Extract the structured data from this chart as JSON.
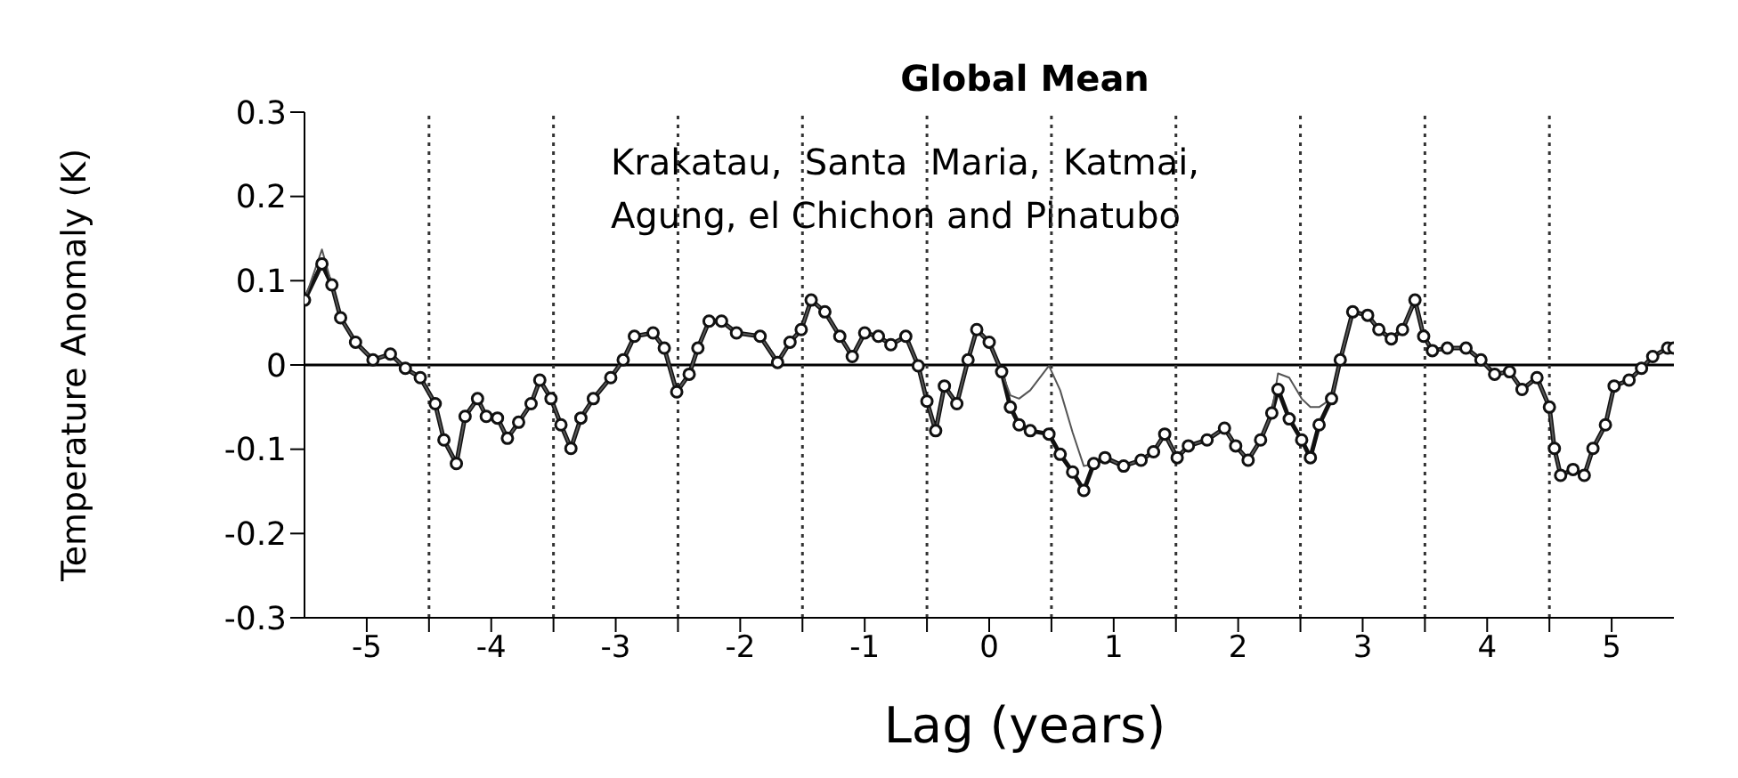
{
  "chart_data": {
    "type": "line",
    "title": "Global Mean",
    "xlabel": "Lag (years)",
    "ylabel": "Temperature Anomaly (K)",
    "annotations": [
      "Krakatau,  Santa  Maria,  Katmai,\nAgung, el Chichon and Pinatubo"
    ],
    "x": [
      -5.5,
      -5.36,
      -5.28,
      -5.21,
      -5.09,
      -4.95,
      -4.81,
      -4.69,
      -4.57,
      -4.45,
      -4.38,
      -4.28,
      -4.21,
      -4.11,
      -4.04,
      -3.95,
      -3.87,
      -3.78,
      -3.68,
      -3.61,
      -3.52,
      -3.44,
      -3.36,
      -3.28,
      -3.18,
      -3.04,
      -2.94,
      -2.85,
      -2.7,
      -2.61,
      -2.51,
      -2.41,
      -2.34,
      -2.25,
      -2.15,
      -2.03,
      -1.84,
      -1.7,
      -1.6,
      -1.51,
      -1.43,
      -1.32,
      -1.2,
      -1.1,
      -1.0,
      -0.89,
      -0.79,
      -0.67,
      -0.57,
      -0.5,
      -0.43,
      -0.36,
      -0.26,
      -0.17,
      -0.1,
      0.0,
      0.1,
      0.17,
      0.24,
      0.33,
      0.48,
      0.57,
      0.67,
      0.76,
      0.84,
      0.93,
      1.08,
      1.22,
      1.32,
      1.41,
      1.51,
      1.6,
      1.75,
      1.89,
      1.98,
      2.08,
      2.18,
      2.27,
      2.32,
      2.41,
      2.51,
      2.58,
      2.65,
      2.75,
      2.82,
      2.92,
      3.04,
      3.13,
      3.23,
      3.32,
      3.42,
      3.49,
      3.56,
      3.68,
      3.83,
      3.95,
      4.06,
      4.18,
      4.28,
      4.4,
      4.5,
      4.54,
      4.59,
      4.69,
      4.78,
      4.85,
      4.95,
      5.02,
      5.14,
      5.24,
      5.33,
      5.45,
      5.5
    ],
    "series": [
      {
        "color": "#111111",
        "marker": "circle",
        "line_style": "solid",
        "values": [
          0.077,
          0.12,
          0.095,
          0.056,
          0.027,
          0.006,
          0.013,
          -0.004,
          -0.015,
          -0.046,
          -0.089,
          -0.117,
          -0.061,
          -0.04,
          -0.061,
          -0.063,
          -0.087,
          -0.068,
          -0.046,
          -0.018,
          -0.04,
          -0.071,
          -0.099,
          -0.063,
          -0.04,
          -0.015,
          0.006,
          0.034,
          0.038,
          0.02,
          -0.032,
          -0.011,
          0.02,
          0.052,
          0.052,
          0.038,
          0.034,
          0.003,
          0.027,
          0.042,
          0.077,
          0.063,
          0.034,
          0.01,
          0.038,
          0.034,
          0.024,
          0.034,
          -0.001,
          -0.043,
          -0.078,
          -0.025,
          -0.046,
          0.006,
          0.042,
          0.027,
          -0.008,
          -0.05,
          -0.071,
          -0.078,
          -0.082,
          -0.106,
          -0.127,
          -0.149,
          -0.117,
          -0.11,
          -0.12,
          -0.113,
          -0.103,
          -0.082,
          -0.11,
          -0.096,
          -0.089,
          -0.075,
          -0.096,
          -0.113,
          -0.089,
          -0.057,
          -0.029,
          -0.064,
          -0.089,
          -0.11,
          -0.071,
          -0.04,
          0.006,
          0.063,
          0.059,
          0.042,
          0.031,
          0.042,
          0.077,
          0.034,
          0.017,
          0.02,
          0.02,
          0.006,
          -0.011,
          -0.008,
          -0.029,
          -0.015,
          -0.05,
          -0.099,
          -0.131,
          -0.124,
          -0.131,
          -0.099,
          -0.071,
          -0.025,
          -0.018,
          -0.004,
          0.01,
          0.02,
          0.02
        ]
      },
      {
        "color": "#555555",
        "marker": "none",
        "line_style": "solid",
        "values": [
          0.077,
          0.137,
          0.095,
          0.056,
          0.027,
          0.006,
          0.013,
          -0.004,
          -0.015,
          -0.046,
          -0.089,
          -0.117,
          -0.061,
          -0.04,
          -0.061,
          -0.063,
          -0.087,
          -0.068,
          -0.046,
          -0.018,
          -0.04,
          -0.071,
          -0.099,
          -0.063,
          -0.04,
          -0.015,
          0.006,
          0.034,
          0.038,
          0.02,
          -0.032,
          -0.011,
          0.02,
          0.052,
          0.052,
          0.038,
          0.034,
          0.003,
          0.027,
          0.042,
          0.077,
          0.063,
          0.034,
          0.01,
          0.038,
          0.034,
          0.024,
          0.034,
          -0.001,
          -0.043,
          -0.078,
          -0.025,
          -0.046,
          0.006,
          0.042,
          0.027,
          -0.008,
          -0.036,
          -0.04,
          -0.03,
          -0.001,
          -0.03,
          -0.08,
          -0.12,
          -0.117,
          -0.11,
          -0.12,
          -0.113,
          -0.103,
          -0.082,
          -0.11,
          -0.096,
          -0.089,
          -0.075,
          -0.096,
          -0.113,
          -0.089,
          -0.057,
          -0.01,
          -0.015,
          -0.04,
          -0.05,
          -0.05,
          -0.04,
          0.006,
          0.063,
          0.059,
          0.042,
          0.031,
          0.042,
          0.077,
          0.034,
          0.017,
          0.02,
          0.02,
          0.006,
          -0.011,
          -0.008,
          -0.029,
          -0.015,
          -0.05,
          -0.099,
          -0.131,
          -0.124,
          -0.131,
          -0.099,
          -0.071,
          -0.025,
          -0.018,
          -0.004,
          0.01,
          0.02,
          0.02
        ]
      }
    ],
    "xlim": [
      -5.5,
      5.5
    ],
    "xticks": [
      -5,
      {
        "value": -4.5,
        "label": null
      },
      -4,
      {
        "value": -3.5,
        "label": null
      },
      -3,
      {
        "value": -2.5,
        "label": null
      },
      -2,
      {
        "value": -1.5,
        "label": null
      },
      -1,
      {
        "value": -0.5,
        "label": null
      },
      0,
      {
        "value": 0.5,
        "label": null
      },
      1,
      {
        "value": 1.5,
        "label": null
      },
      2,
      {
        "value": 2.5,
        "label": null
      },
      3,
      {
        "value": 3.5,
        "label": null
      },
      4,
      {
        "value": 4.5,
        "label": null
      },
      5
    ],
    "ylim": [
      -0.3,
      0.3
    ],
    "yticks": [
      -0.3,
      -0.2,
      -0.1,
      0,
      0.1,
      0.2,
      0.3
    ],
    "ref_lines": [
      {
        "axis": "y",
        "value": 0,
        "color": "#000000",
        "line_style": "solid"
      },
      {
        "axis": "x",
        "value": -4.5,
        "line_style": "dotted"
      },
      {
        "axis": "x",
        "value": -3.5,
        "line_style": "dotted"
      },
      {
        "axis": "x",
        "value": -2.5,
        "line_style": "dotted"
      },
      {
        "axis": "x",
        "value": -1.5,
        "line_style": "dotted"
      },
      {
        "axis": "x",
        "value": -0.5,
        "line_style": "dotted"
      },
      {
        "axis": "x",
        "value": 0.5,
        "line_style": "dotted"
      },
      {
        "axis": "x",
        "value": 1.5,
        "line_style": "dotted"
      },
      {
        "axis": "x",
        "value": 2.5,
        "line_style": "dotted"
      },
      {
        "axis": "x",
        "value": 3.5,
        "line_style": "dotted"
      },
      {
        "axis": "x",
        "value": 4.5,
        "line_style": "dotted"
      }
    ],
    "grid": false,
    "legend": false
  }
}
